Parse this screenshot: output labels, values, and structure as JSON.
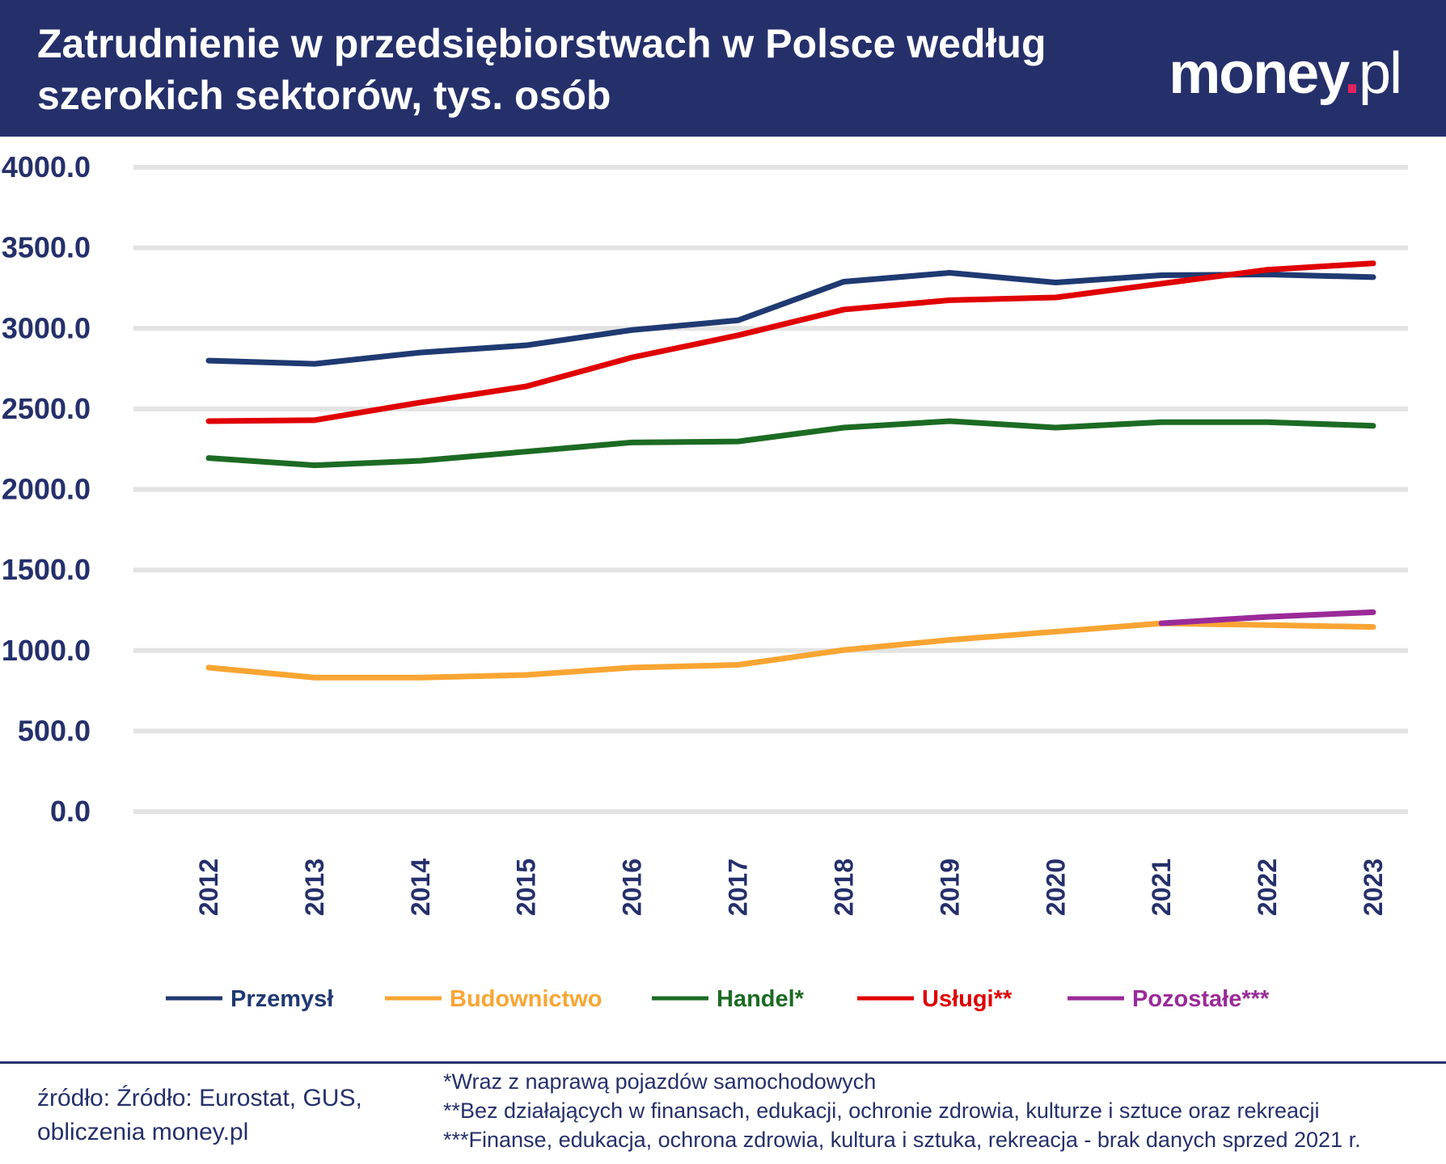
{
  "header": {
    "title": "Zatrudnienie w przedsiębiorstwach w Polsce według szerokich sektorów, tys. osób",
    "logo": "money.pl"
  },
  "chart_data": {
    "type": "line",
    "title": "Zatrudnienie w przedsiębiorstwach w Polsce według szerokich sektorów, tys. osób",
    "xlabel": "",
    "ylabel": "",
    "ylim": [
      0,
      4000
    ],
    "yticks": [
      "0.0",
      "500.0",
      "1000.0",
      "1500.0",
      "2000.0",
      "2500.0",
      "3000.0",
      "3500.0",
      "4000.0"
    ],
    "grid": true,
    "legend": "bottom",
    "categories": [
      "2012",
      "2013",
      "2014",
      "2015",
      "2016",
      "2017",
      "2018",
      "2019",
      "2020",
      "2021",
      "2022",
      "2023"
    ],
    "series": [
      {
        "name": "Przemysł",
        "color": "#1f3a72",
        "values": [
          2800,
          2780,
          2850,
          2895,
          2990,
          3050,
          3290,
          3345,
          3285,
          3330,
          3335,
          3318
        ]
      },
      {
        "name": "Budownictwo",
        "color": "#f9a533",
        "values": [
          894,
          832,
          832,
          848,
          894,
          911,
          1003,
          1066,
          1117,
          1169,
          1158,
          1146
        ]
      },
      {
        "name": "Handel*",
        "color": "#1c6b23",
        "values": [
          2195,
          2150,
          2178,
          2235,
          2292,
          2298,
          2384,
          2424,
          2384,
          2418,
          2418,
          2395
        ]
      },
      {
        "name": "Usługi**",
        "color": "#e00000",
        "values": [
          2424,
          2430,
          2540,
          2640,
          2820,
          2957,
          3117,
          3175,
          3192,
          3278,
          3364,
          3404
        ]
      },
      {
        "name": "Pozostałe***",
        "color": "#9b2a98",
        "values": [
          null,
          null,
          null,
          null,
          null,
          null,
          null,
          null,
          null,
          1169,
          1209,
          1238
        ]
      }
    ]
  },
  "footer": {
    "source": "źródło: Źródło: Eurostat, GUS, obliczenia money.pl",
    "notes": [
      "*Wraz z naprawą pojazdów samochodowych",
      "**Bez działających w finansach, edukacji, ochronie zdrowia, kulturze i sztuce oraz rekreacji",
      "***Finanse, edukacja, ochrona zdrowia, kultura i sztuka, rekreacja - brak danych sprzed 2021 r."
    ]
  }
}
